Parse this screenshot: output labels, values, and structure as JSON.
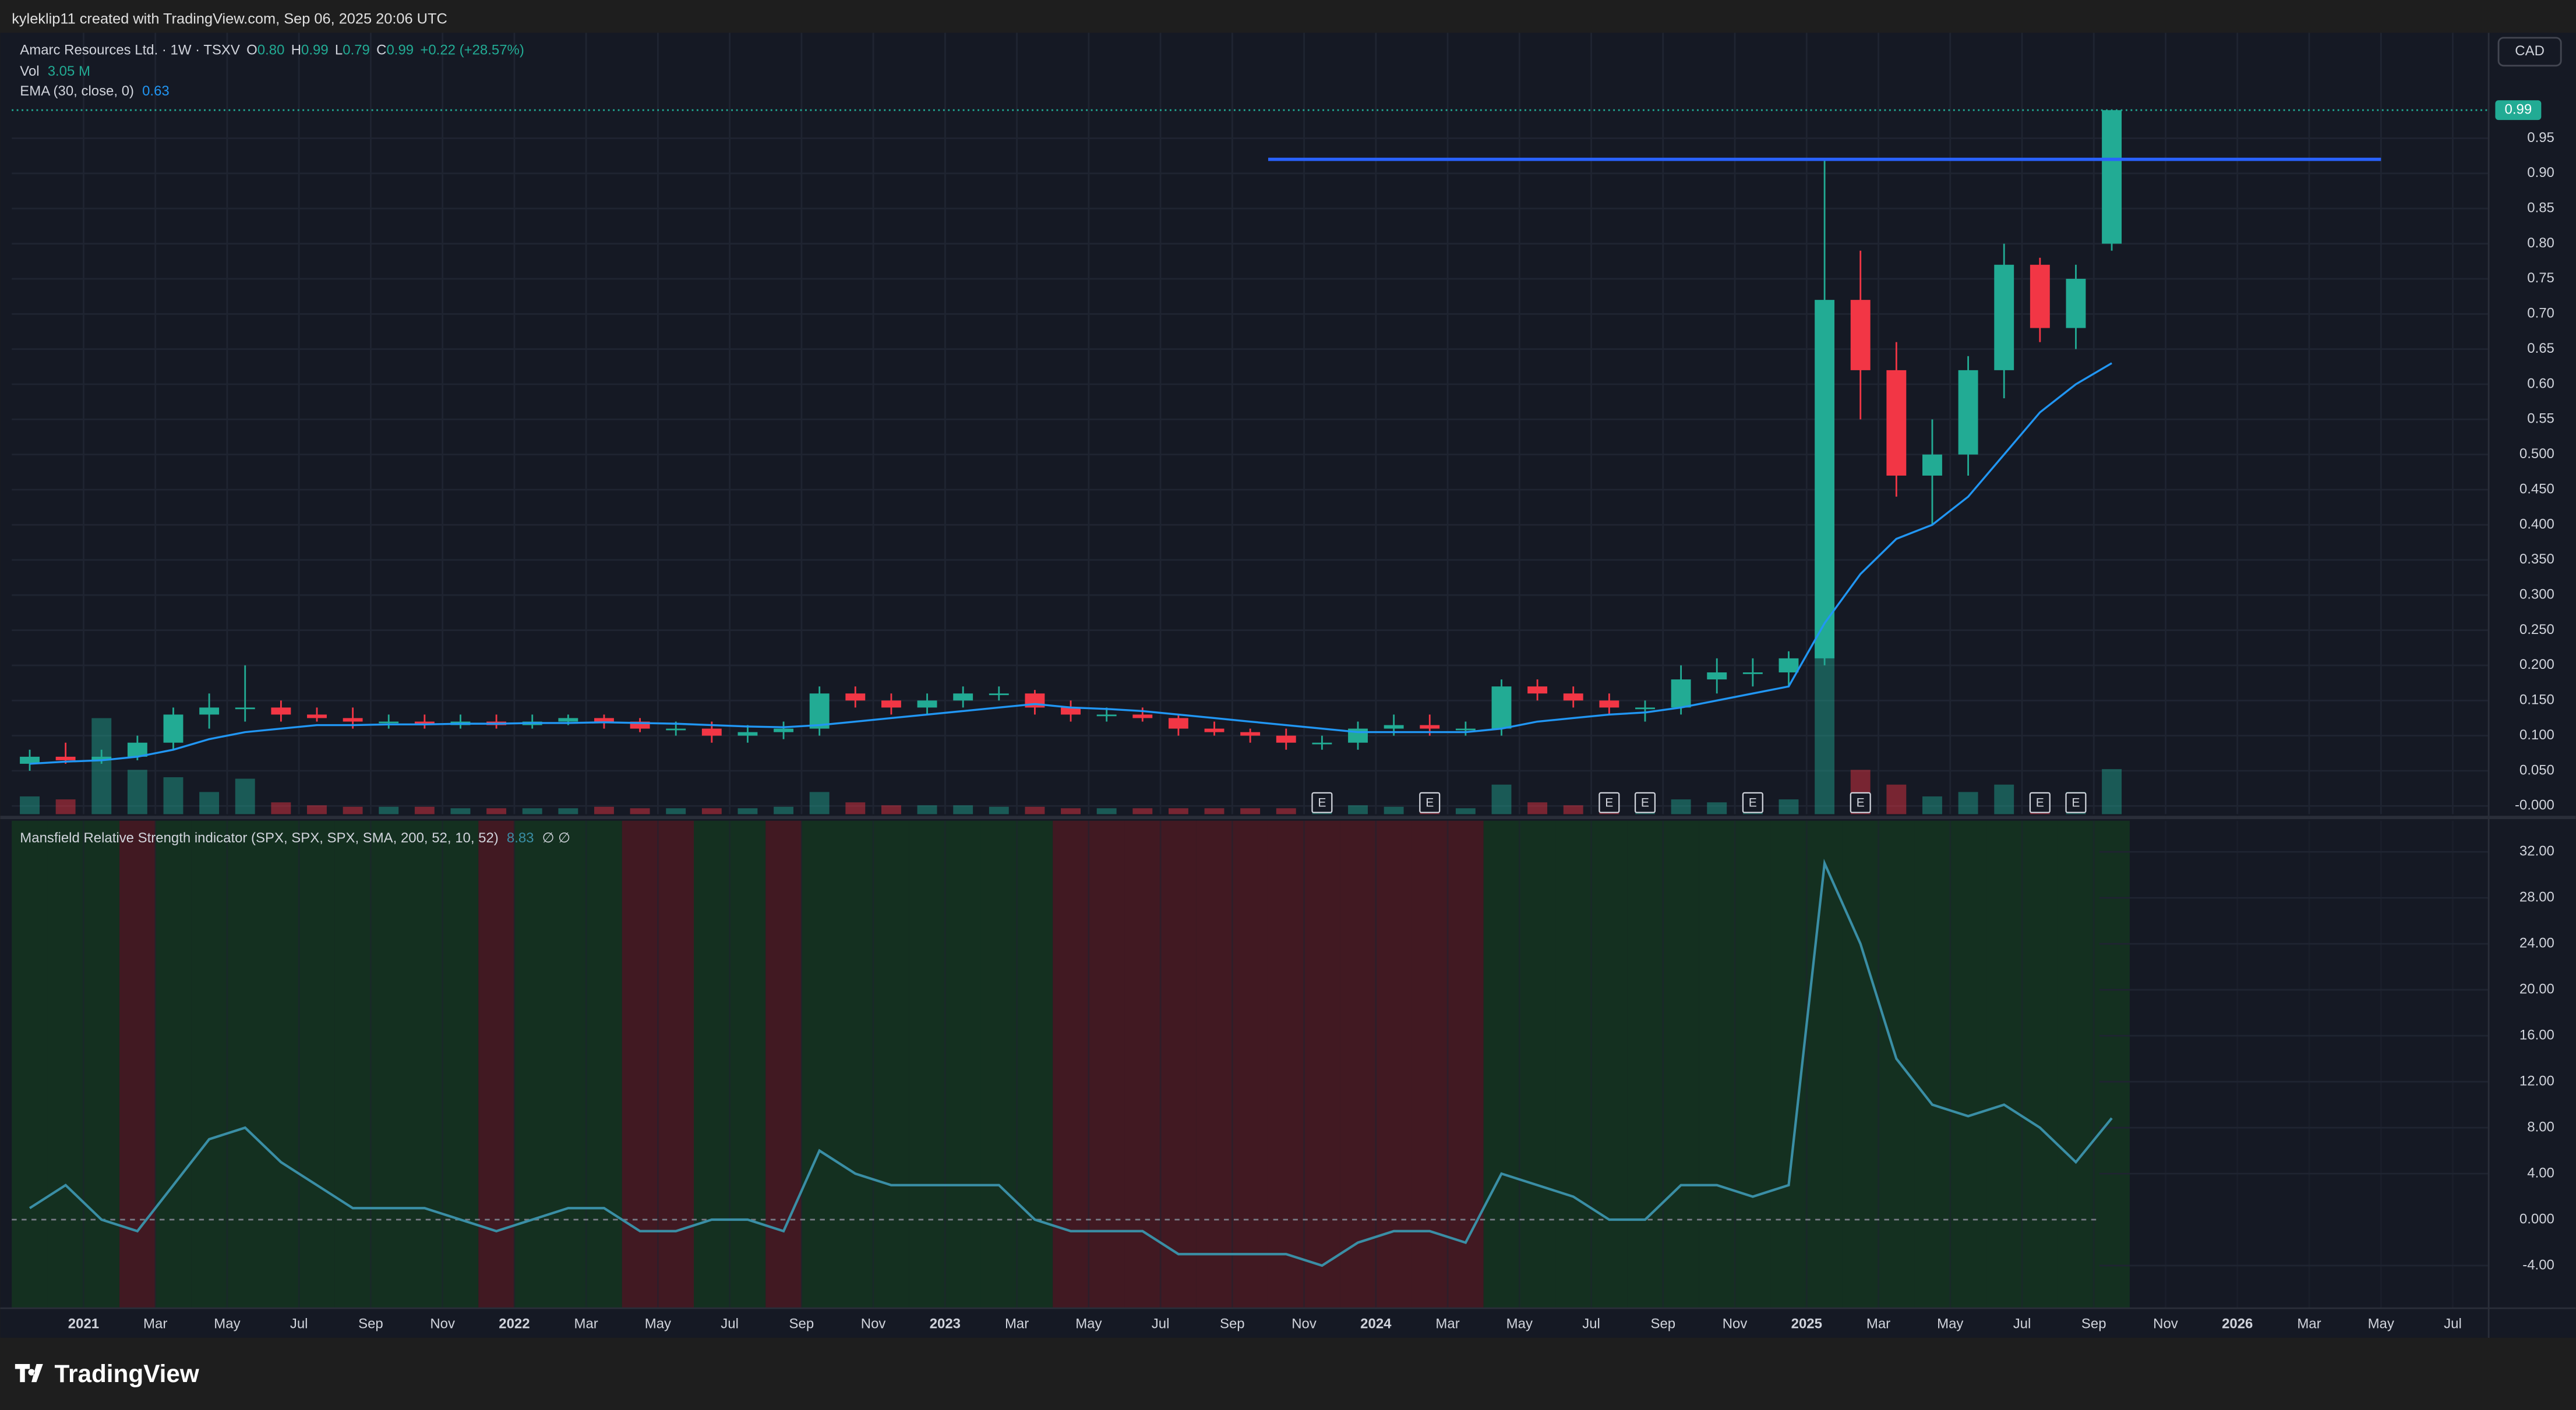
{
  "header": {
    "credit": "kyleklip11 created with TradingView.com, Sep 06, 2025 20:06 UTC"
  },
  "footer": {
    "brand": "TradingView"
  },
  "chart_data": [
    {
      "type": "candlestick",
      "currency": "CAD",
      "symbol": "Amarc Resources Ltd. · 1W · TSXV",
      "ohlc_legend": [
        {
          "key": "O",
          "value": "0.80"
        },
        {
          "key": "H",
          "value": "0.99"
        },
        {
          "key": "L",
          "value": "0.79"
        },
        {
          "key": "C",
          "value": "0.99"
        }
      ],
      "change": "+0.22 (+28.57%)",
      "volume_name": "Vol",
      "volume_label": "3.05 M",
      "up_color": "#22ab94",
      "down_color": "#f23645",
      "x": [
        "2020-11",
        "2020-12",
        "2021-01",
        "2021-02",
        "2021-03",
        "2021-04",
        "2021-05",
        "2021-06",
        "2021-07",
        "2021-08",
        "2021-09",
        "2021-10",
        "2021-11",
        "2021-12",
        "2022-01",
        "2022-02",
        "2022-03",
        "2022-04",
        "2022-05",
        "2022-06",
        "2022-07",
        "2022-08",
        "2022-09",
        "2022-10",
        "2022-11",
        "2022-12",
        "2023-01",
        "2023-02",
        "2023-03",
        "2023-04",
        "2023-05",
        "2023-06",
        "2023-07",
        "2023-08",
        "2023-09",
        "2023-10",
        "2023-11",
        "2023-12",
        "2024-01",
        "2024-02",
        "2024-03",
        "2024-04",
        "2024-05",
        "2024-06",
        "2024-07",
        "2024-08",
        "2024-09",
        "2024-10",
        "2024-11",
        "2024-12",
        "2025-01",
        "2025-02",
        "2025-03",
        "2025-04",
        "2025-05",
        "2025-06",
        "2025-07",
        "2025-08",
        "2025-09"
      ],
      "open": [
        0.06,
        0.07,
        0.065,
        0.07,
        0.09,
        0.13,
        0.14,
        0.14,
        0.13,
        0.125,
        0.12,
        0.12,
        0.115,
        0.12,
        0.115,
        0.12,
        0.125,
        0.12,
        0.11,
        0.11,
        0.1,
        0.105,
        0.11,
        0.16,
        0.15,
        0.14,
        0.15,
        0.16,
        0.16,
        0.14,
        0.13,
        0.13,
        0.125,
        0.11,
        0.105,
        0.1,
        0.09,
        0.09,
        0.11,
        0.115,
        0.11,
        0.11,
        0.17,
        0.16,
        0.15,
        0.14,
        0.14,
        0.18,
        0.19,
        0.19,
        0.21,
        0.72,
        0.62,
        0.47,
        0.5,
        0.62,
        0.77,
        0.68,
        0.8
      ],
      "high": [
        0.08,
        0.09,
        0.08,
        0.1,
        0.14,
        0.16,
        0.2,
        0.15,
        0.14,
        0.14,
        0.13,
        0.13,
        0.13,
        0.13,
        0.13,
        0.13,
        0.13,
        0.125,
        0.12,
        0.12,
        0.115,
        0.12,
        0.17,
        0.17,
        0.16,
        0.16,
        0.17,
        0.17,
        0.165,
        0.15,
        0.14,
        0.14,
        0.13,
        0.12,
        0.11,
        0.11,
        0.1,
        0.12,
        0.13,
        0.13,
        0.12,
        0.18,
        0.18,
        0.17,
        0.16,
        0.15,
        0.2,
        0.21,
        0.21,
        0.22,
        0.92,
        0.79,
        0.66,
        0.55,
        0.64,
        0.8,
        0.78,
        0.77,
        0.99
      ],
      "low": [
        0.05,
        0.06,
        0.06,
        0.065,
        0.08,
        0.11,
        0.12,
        0.12,
        0.12,
        0.11,
        0.11,
        0.11,
        0.11,
        0.11,
        0.11,
        0.115,
        0.11,
        0.105,
        0.1,
        0.09,
        0.09,
        0.095,
        0.1,
        0.14,
        0.13,
        0.13,
        0.14,
        0.15,
        0.13,
        0.12,
        0.12,
        0.12,
        0.1,
        0.1,
        0.09,
        0.08,
        0.08,
        0.08,
        0.1,
        0.1,
        0.1,
        0.1,
        0.15,
        0.14,
        0.13,
        0.12,
        0.13,
        0.16,
        0.17,
        0.17,
        0.2,
        0.55,
        0.44,
        0.4,
        0.47,
        0.58,
        0.66,
        0.65,
        0.79
      ],
      "close": [
        0.07,
        0.065,
        0.07,
        0.09,
        0.13,
        0.14,
        0.14,
        0.13,
        0.125,
        0.12,
        0.12,
        0.115,
        0.12,
        0.115,
        0.12,
        0.125,
        0.12,
        0.11,
        0.11,
        0.1,
        0.105,
        0.11,
        0.16,
        0.15,
        0.14,
        0.15,
        0.16,
        0.16,
        0.14,
        0.13,
        0.13,
        0.125,
        0.11,
        0.105,
        0.1,
        0.09,
        0.09,
        0.11,
        0.115,
        0.11,
        0.11,
        0.17,
        0.16,
        0.15,
        0.14,
        0.14,
        0.18,
        0.19,
        0.19,
        0.21,
        0.72,
        0.62,
        0.47,
        0.5,
        0.62,
        0.77,
        0.68,
        0.75,
        0.99
      ],
      "volume": [
        1.2,
        1.0,
        6.5,
        3.0,
        2.5,
        1.5,
        2.4,
        0.8,
        0.6,
        0.5,
        0.5,
        0.5,
        0.4,
        0.4,
        0.4,
        0.4,
        0.5,
        0.4,
        0.4,
        0.4,
        0.4,
        0.5,
        1.5,
        0.8,
        0.6,
        0.6,
        0.6,
        0.5,
        0.5,
        0.4,
        0.4,
        0.4,
        0.4,
        0.4,
        0.4,
        0.4,
        0.4,
        0.6,
        0.5,
        0.5,
        0.4,
        2.0,
        0.8,
        0.6,
        0.5,
        0.5,
        1.0,
        0.8,
        0.8,
        1.0,
        12.0,
        3.0,
        2.0,
        1.2,
        1.5,
        2.0,
        1.2,
        1.5,
        3.05
      ],
      "ema": {
        "name": "EMA (30, close, 0)",
        "value_label": "0.63",
        "color": "#2196f3",
        "values": [
          0.06,
          0.063,
          0.065,
          0.07,
          0.08,
          0.095,
          0.105,
          0.11,
          0.115,
          0.115,
          0.116,
          0.116,
          0.117,
          0.117,
          0.118,
          0.118,
          0.119,
          0.118,
          0.117,
          0.115,
          0.113,
          0.112,
          0.115,
          0.12,
          0.125,
          0.13,
          0.135,
          0.14,
          0.145,
          0.14,
          0.138,
          0.135,
          0.13,
          0.125,
          0.12,
          0.115,
          0.11,
          0.105,
          0.105,
          0.105,
          0.105,
          0.11,
          0.12,
          0.125,
          0.13,
          0.133,
          0.14,
          0.15,
          0.16,
          0.17,
          0.26,
          0.33,
          0.38,
          0.4,
          0.44,
          0.5,
          0.56,
          0.6,
          0.63
        ]
      },
      "events": {
        "label": "E",
        "x": [
          "2023-11",
          "2024-02",
          "2024-07",
          "2024-08",
          "2024-11",
          "2025-02",
          "2025-07",
          "2025-08"
        ]
      },
      "horizontal_line": {
        "price": 0.92,
        "from": "2023-10",
        "to": "2026-05",
        "color": "#2962ff"
      },
      "ylim": [
        -0.0117,
        1.1
      ],
      "yticks": [
        {
          "value": 0,
          "label": "-0.000"
        },
        {
          "value": 0.05,
          "label": "0.050"
        },
        {
          "value": 0.1,
          "label": "0.100"
        },
        {
          "value": 0.15,
          "label": "0.150"
        },
        {
          "value": 0.2,
          "label": "0.200"
        },
        {
          "value": 0.25,
          "label": "0.250"
        },
        {
          "value": 0.3,
          "label": "0.300"
        },
        {
          "value": 0.35,
          "label": "0.350"
        },
        {
          "value": 0.4,
          "label": "0.400"
        },
        {
          "value": 0.45,
          "label": "0.450"
        },
        {
          "value": 0.5,
          "label": "0.500"
        },
        0.55,
        {
          "value": 0.6,
          "label": "0.60"
        },
        0.65,
        {
          "value": 0.7,
          "label": "0.70"
        },
        0.75,
        {
          "value": 0.8,
          "label": "0.80"
        },
        0.85,
        {
          "value": 0.9,
          "label": "0.90"
        },
        0.95
      ],
      "grid": true
    },
    {
      "type": "line",
      "title": "Mansfield Relative Strength indicator (SPX, SPX, SPX, SMA, 200, 52, 10, 52)",
      "value_label": "8.83",
      "extra": "∅  ∅",
      "color": "#3a8ea5",
      "positive_shade": "#143320",
      "negative_shade": "#461a22",
      "x": [
        "2020-11",
        "2020-12",
        "2021-01",
        "2021-02",
        "2021-03",
        "2021-04",
        "2021-05",
        "2021-06",
        "2021-07",
        "2021-08",
        "2021-09",
        "2021-10",
        "2021-11",
        "2021-12",
        "2022-01",
        "2022-02",
        "2022-03",
        "2022-04",
        "2022-05",
        "2022-06",
        "2022-07",
        "2022-08",
        "2022-09",
        "2022-10",
        "2022-11",
        "2022-12",
        "2023-01",
        "2023-02",
        "2023-03",
        "2023-04",
        "2023-05",
        "2023-06",
        "2023-07",
        "2023-08",
        "2023-09",
        "2023-10",
        "2023-11",
        "2023-12",
        "2024-01",
        "2024-02",
        "2024-03",
        "2024-04",
        "2024-05",
        "2024-06",
        "2024-07",
        "2024-08",
        "2024-09",
        "2024-10",
        "2024-11",
        "2024-12",
        "2025-01",
        "2025-02",
        "2025-03",
        "2025-04",
        "2025-05",
        "2025-06",
        "2025-07",
        "2025-08",
        "2025-09"
      ],
      "values": [
        1,
        3,
        0,
        -1,
        3,
        7,
        8,
        5,
        3,
        1,
        1,
        1,
        0,
        -1,
        0,
        1,
        1,
        -1,
        -1,
        0,
        0,
        -1,
        6,
        4,
        3,
        3,
        3,
        3,
        0,
        -1,
        -1,
        -1,
        -3,
        -3,
        -3,
        -3,
        -4,
        -2,
        -1,
        -1,
        -2,
        4,
        3,
        2,
        0,
        0,
        3,
        3,
        2,
        3,
        31,
        24,
        14,
        10,
        9,
        10,
        8,
        5,
        8.83
      ],
      "xlim": [
        "2020-11",
        "2026-08"
      ],
      "xticks": [
        {
          "value": "2021-01",
          "label": "2021"
        },
        {
          "value": "2021-03",
          "label": "Mar"
        },
        {
          "value": "2021-05",
          "label": "May"
        },
        {
          "value": "2021-07",
          "label": "Jul"
        },
        {
          "value": "2021-09",
          "label": "Sep"
        },
        {
          "value": "2021-11",
          "label": "Nov"
        },
        {
          "value": "2022-01",
          "label": "2022"
        },
        {
          "value": "2022-03",
          "label": "Mar"
        },
        {
          "value": "2022-05",
          "label": "May"
        },
        {
          "value": "2022-07",
          "label": "Jul"
        },
        {
          "value": "2022-09",
          "label": "Sep"
        },
        {
          "value": "2022-11",
          "label": "Nov"
        },
        {
          "value": "2023-01",
          "label": "2023"
        },
        {
          "value": "2023-03",
          "label": "Mar"
        },
        {
          "value": "2023-05",
          "label": "May"
        },
        {
          "value": "2023-07",
          "label": "Jul"
        },
        {
          "value": "2023-09",
          "label": "Sep"
        },
        {
          "value": "2023-11",
          "label": "Nov"
        },
        {
          "value": "2024-01",
          "label": "2024"
        },
        {
          "value": "2024-03",
          "label": "Mar"
        },
        {
          "value": "2024-05",
          "label": "May"
        },
        {
          "value": "2024-07",
          "label": "Jul"
        },
        {
          "value": "2024-09",
          "label": "Sep"
        },
        {
          "value": "2024-11",
          "label": "Nov"
        },
        {
          "value": "2025-01",
          "label": "2025"
        },
        {
          "value": "2025-03",
          "label": "Mar"
        },
        {
          "value": "2025-05",
          "label": "May"
        },
        {
          "value": "2025-07",
          "label": "Jul"
        },
        {
          "value": "2025-09",
          "label": "Sep"
        },
        {
          "value": "2025-11",
          "label": "Nov"
        },
        {
          "value": "2026-01",
          "label": "2026"
        },
        {
          "value": "2026-03",
          "label": "Mar"
        },
        {
          "value": "2026-05",
          "label": "May"
        },
        {
          "value": "2026-07",
          "label": "Jul"
        }
      ],
      "ylim": [
        -7.71,
        34.71
      ],
      "yticks": [
        {
          "value": -4,
          "label": "-4.00"
        },
        {
          "value": 0,
          "label": "0.000"
        },
        {
          "value": 4,
          "label": "4.00"
        },
        {
          "value": 8,
          "label": "8.00"
        },
        {
          "value": 12,
          "label": "12.00"
        },
        {
          "value": 16,
          "label": "16.00"
        },
        {
          "value": 20,
          "label": "20.00"
        },
        {
          "value": 24,
          "label": "24.00"
        },
        {
          "value": 28,
          "label": "28.00"
        },
        {
          "value": 32,
          "label": "32.00"
        }
      ],
      "zero_line": true
    }
  ]
}
